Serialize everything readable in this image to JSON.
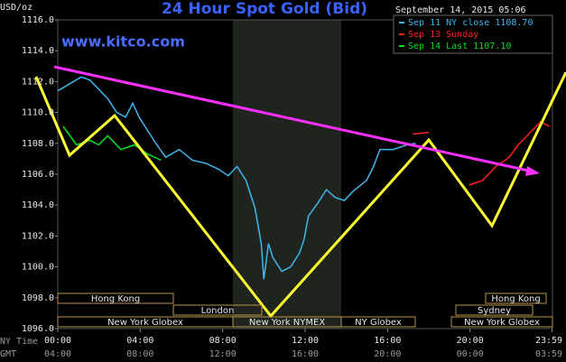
{
  "chart_data": {
    "type": "line",
    "title": "24 Hour Spot Gold (Bid)",
    "y_label": "USD/oz",
    "watermark": "www.kitco.com",
    "timestamp": "September 14, 2015 05:06",
    "x_label": "NY Time",
    "x2_label": "GMT",
    "xlim": [
      0,
      24
    ],
    "xticks": [
      {
        "value": 0,
        "label": "00:00"
      },
      {
        "value": 4,
        "label": "04:00"
      },
      {
        "value": 8,
        "label": "08:00"
      },
      {
        "value": 12,
        "label": "12:00"
      },
      {
        "value": 16,
        "label": "16:00"
      },
      {
        "value": 20,
        "label": "20:00"
      },
      {
        "value": 23.98,
        "label": "23:59"
      }
    ],
    "x2ticks": [
      "04:00",
      "08:00",
      "12:00",
      "16:00",
      "20:00",
      "00:00",
      "03:59"
    ],
    "ylim": [
      1096,
      1116
    ],
    "yticks": [
      {
        "value": 1096,
        "label": "1096.0"
      },
      {
        "value": 1098,
        "label": "1098.0"
      },
      {
        "value": 1100,
        "label": "1100.0"
      },
      {
        "value": 1102,
        "label": "1102.0"
      },
      {
        "value": 1104,
        "label": "1104.0"
      },
      {
        "value": 1106,
        "label": "1106.0"
      },
      {
        "value": 1108,
        "label": "1108.0"
      },
      {
        "value": 1110,
        "label": "1110.0"
      },
      {
        "value": 1112,
        "label": "1112.0"
      },
      {
        "value": 1114,
        "label": "1114.0"
      },
      {
        "value": 1116,
        "label": "1116.0"
      }
    ],
    "grid": false,
    "series": [
      {
        "name": "Sep 11 NY close 1108.70",
        "color": "#3fb6ee",
        "x": [
          0,
          1.13,
          1.56,
          2.42,
          2.86,
          3.29,
          3.64,
          3.94,
          4.37,
          4.81,
          5.24,
          5.89,
          6.54,
          7.19,
          7.84,
          8.27,
          8.7,
          9.13,
          9.57,
          9.87,
          10.0,
          10.22,
          10.43,
          10.87,
          11.3,
          11.73,
          11.95,
          12.16,
          12.6,
          13.03,
          13.46,
          13.9,
          14.33,
          14.98,
          15.32,
          15.63,
          16.28,
          16.93,
          17.36
        ],
        "values": [
          1111.4,
          1112.3,
          1112.1,
          1110.9,
          1110.0,
          1109.7,
          1110.6,
          1109.7,
          1108.8,
          1107.9,
          1107.1,
          1107.6,
          1106.9,
          1106.7,
          1106.3,
          1105.9,
          1106.5,
          1105.6,
          1103.8,
          1101.5,
          1099.2,
          1101.5,
          1100.6,
          1099.7,
          1100.0,
          1100.9,
          1101.8,
          1103.3,
          1104.1,
          1105.0,
          1104.5,
          1104.3,
          1104.9,
          1105.6,
          1106.5,
          1107.6,
          1107.6,
          1107.9,
          1108.0
        ]
      },
      {
        "name": "Sep 13 Sunday",
        "color": "#ff2020",
        "x": [
          17.23,
          18.01,
          18.87,
          19.96,
          20.61,
          21.26,
          21.9,
          22.34,
          22.99,
          23.42,
          23.85
        ],
        "values": [
          1108.6,
          1108.7,
          null,
          1105.3,
          1105.6,
          1106.5,
          1107.1,
          1107.9,
          1108.8,
          1109.4,
          1109.1
        ]
      },
      {
        "name": "Sep 14 Last 1107.10",
        "color": "#00e020",
        "x": [
          0.26,
          0.91,
          1.56,
          1.99,
          2.42,
          3.07,
          3.72,
          4.37,
          5.02
        ],
        "values": [
          1109.1,
          1107.9,
          1108.2,
          1107.9,
          1108.5,
          1107.6,
          1107.9,
          1107.3,
          1106.9
        ]
      }
    ],
    "sessions": [
      "Hong Kong",
      "London",
      "New York Globex",
      "New York NYMEX",
      "NY Globex",
      "Sydney",
      "Hong Kong",
      "New York Globex"
    ]
  }
}
